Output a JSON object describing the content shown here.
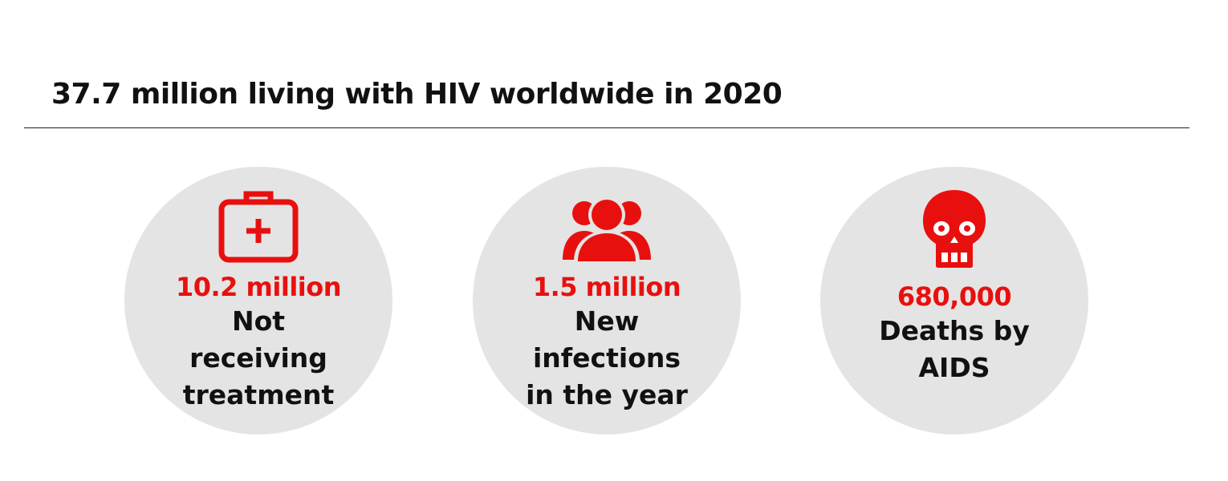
{
  "header": {
    "title": "37.7 million living with HIV worldwide in 2020"
  },
  "accent_color": "#e8100e",
  "circle_color": "#e4e4e4",
  "stats": [
    {
      "icon": "first-aid-kit-icon",
      "value": "10.2 million",
      "label": "Not receiving treatment"
    },
    {
      "icon": "people-group-icon",
      "value": "1.5 million",
      "label": "New infections in the year"
    },
    {
      "icon": "skull-icon",
      "value": "680,000",
      "label": "Deaths by AIDS"
    }
  ]
}
